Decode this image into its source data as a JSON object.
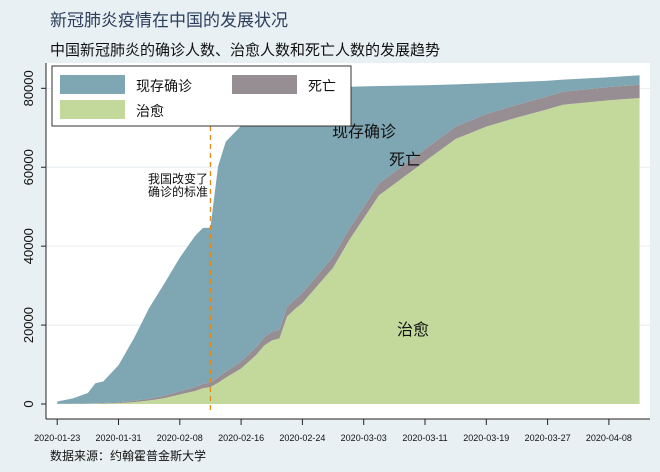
{
  "title": "新冠肺炎疫情在中国的发展状况",
  "subtitle": "中国新冠肺炎的确诊人数、治愈人数和死亡人数的发展趋势",
  "source": "数据来源：约翰霍普金斯大学",
  "chart_data": {
    "type": "area",
    "stacked": true,
    "title": "新冠肺炎疫情在中国的发展状况",
    "subtitle": "中国新冠肺炎的确诊人数、治愈人数和死亡人数的发展趋势",
    "xlabel": "",
    "ylabel": "",
    "ylim": [
      0,
      85000
    ],
    "yticks": [
      0,
      20000,
      40000,
      60000,
      80000
    ],
    "xticks": [
      "2020-01-23",
      "2020-01-31",
      "2020-02-08",
      "2020-02-16",
      "2020-02-24",
      "2020-03-03",
      "2020-03-11",
      "2020-03-19",
      "2020-03-27",
      "2020-04-08"
    ],
    "grid": true,
    "legend_position": "top-left",
    "x": [
      "2020-01-23",
      "2020-01-25",
      "2020-01-27",
      "2020-01-28",
      "2020-01-29",
      "2020-01-31",
      "2020-02-02",
      "2020-02-04",
      "2020-02-06",
      "2020-02-08",
      "2020-02-10",
      "2020-02-11",
      "2020-02-12",
      "2020-02-13",
      "2020-02-14",
      "2020-02-16",
      "2020-02-18",
      "2020-02-19",
      "2020-02-20",
      "2020-02-21",
      "2020-02-22",
      "2020-02-23",
      "2020-02-24",
      "2020-02-28",
      "2020-03-01",
      "2020-03-05",
      "2020-03-11",
      "2020-03-15",
      "2020-03-19",
      "2020-03-23",
      "2020-03-27",
      "2020-03-30",
      "2020-04-08",
      "2020-04-14"
    ],
    "series": [
      {
        "name": "治愈",
        "color": "#c3d99b",
        "values": [
          30,
          40,
          60,
          100,
          120,
          220,
          470,
          890,
          1500,
          2400,
          3300,
          4000,
          4300,
          5400,
          6700,
          9000,
          12500,
          14800,
          16100,
          16600,
          22200,
          24000,
          25600,
          34500,
          41200,
          52900,
          61500,
          67150,
          70300,
          72600,
          74700,
          75850,
          77000,
          77550
        ]
      },
      {
        "name": "死亡",
        "color": "#968e93",
        "values": [
          18,
          42,
          80,
          106,
          132,
          213,
          361,
          490,
          636,
          806,
          1000,
          1100,
          1115,
          1370,
          1500,
          1770,
          2000,
          2100,
          2230,
          2240,
          2440,
          2460,
          2600,
          2800,
          2870,
          3000,
          3100,
          3150,
          3200,
          3250,
          3280,
          3300,
          3330,
          3350
        ]
      },
      {
        "name": "现存确诊",
        "color": "#7fa6b3",
        "values": [
          592,
          1318,
          2660,
          5094,
          5448,
          9367,
          15769,
          22920,
          28464,
          33894,
          38300,
          39500,
          39285,
          53530,
          58300,
          59730,
          59700,
          57700,
          56670,
          56660,
          52260,
          50640,
          50600,
          42900,
          36330,
          24700,
          16200,
          10700,
          7800,
          5750,
          3920,
          3050,
          2470,
          2400
        ]
      }
    ],
    "annotations": [
      {
        "text": "我国改变了确诊的标准",
        "lines": [
          "我国改变了",
          "确诊的标准"
        ],
        "x": "2020-02-12",
        "type": "vertical-dashed-line",
        "color": "#e08a1e"
      },
      {
        "text": "现存确诊",
        "type": "area-label"
      },
      {
        "text": "死亡",
        "type": "area-label"
      },
      {
        "text": "治愈",
        "type": "area-label"
      }
    ],
    "legend": [
      "现存确诊",
      "死亡",
      "治愈"
    ]
  }
}
